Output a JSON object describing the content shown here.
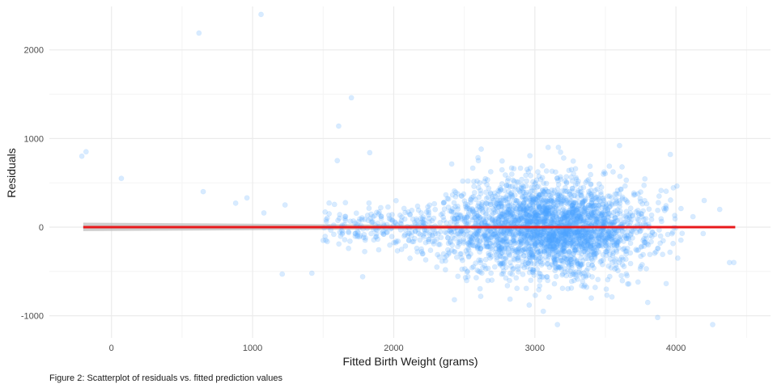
{
  "chart_data": {
    "type": "scatter",
    "xlabel": "Fitted Birth Weight (grams)",
    "ylabel": "Residuals",
    "caption": "Figure 2: Scatterplot of residuals vs. fitted prediction values",
    "xlim": [
      -440,
      4670
    ],
    "ylim": [
      -1250,
      2490
    ],
    "x_ticks": [
      0,
      1000,
      2000,
      3000,
      4000
    ],
    "x_tick_labels": [
      "0",
      "1000",
      "2000",
      "3000",
      "4000"
    ],
    "y_ticks": [
      -1000,
      0,
      1000,
      2000
    ],
    "y_tick_labels": [
      "-1000",
      "0",
      "1000",
      "2000"
    ],
    "grid": true,
    "colors": {
      "points": "#4da6ff",
      "fit_line": "#e8191c",
      "ribbon": "#bdbdbd",
      "grid_major": "#ebebeb",
      "grid_minor": "#f4f4f4"
    },
    "point_alpha": 0.22,
    "fit_line": {
      "x": [
        -200,
        4420
      ],
      "y": [
        0,
        0
      ]
    },
    "confidence_band": {
      "x": [
        -200,
        4420
      ],
      "y_low": [
        -45,
        -5
      ],
      "y_high": [
        50,
        5
      ]
    },
    "labeled_points": [
      [
        -210,
        800
      ],
      [
        -180,
        850
      ],
      [
        70,
        550
      ],
      [
        620,
        2190
      ],
      [
        650,
        400
      ],
      [
        1060,
        2400
      ],
      [
        1700,
        1460
      ],
      [
        1610,
        1140
      ],
      [
        1830,
        840
      ],
      [
        960,
        330
      ],
      [
        880,
        270
      ],
      [
        1230,
        250
      ],
      [
        1210,
        -530
      ],
      [
        1420,
        -520
      ],
      [
        1780,
        -560
      ],
      [
        2430,
        -820
      ],
      [
        2960,
        -880
      ],
      [
        3060,
        -950
      ],
      [
        3160,
        -1100
      ],
      [
        3870,
        -1020
      ],
      [
        4260,
        -1100
      ],
      [
        4410,
        -400
      ],
      [
        4310,
        200
      ],
      [
        4200,
        300
      ],
      [
        3960,
        820
      ],
      [
        3600,
        920
      ],
      [
        2620,
        880
      ],
      [
        1600,
        750
      ],
      [
        1080,
        160
      ],
      [
        1500,
        -150
      ],
      [
        2600,
        750
      ],
      [
        3400,
        -800
      ],
      [
        3800,
        -850
      ]
    ],
    "cloud": {
      "n": 3000,
      "x_center": 3120,
      "x_sd": 330,
      "x_range": [
        1500,
        4450
      ],
      "y_sd": 260,
      "y_range": [
        -1000,
        900
      ]
    }
  }
}
